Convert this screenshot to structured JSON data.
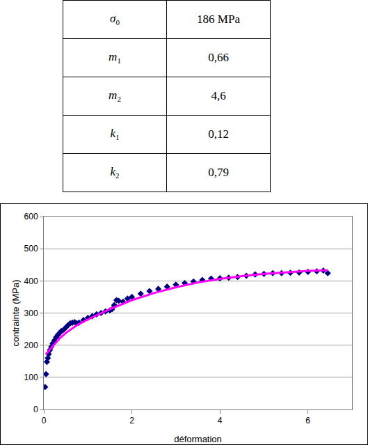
{
  "table": {
    "rows": [
      {
        "symbol": "σ",
        "sub": "0",
        "value": "186 MPa"
      },
      {
        "symbol": "m",
        "sub": "1",
        "value": "0,66"
      },
      {
        "symbol": "m",
        "sub": "2",
        "value": "4,6"
      },
      {
        "symbol": "k",
        "sub": "1",
        "value": "0,12"
      },
      {
        "symbol": "k",
        "sub": "2",
        "value": "0,79"
      }
    ]
  },
  "chart_data": {
    "type": "scatter",
    "xlabel": "déformation",
    "ylabel": "contrainte (MPa)",
    "xlim": [
      0,
      7
    ],
    "xticks": [
      0,
      2,
      4,
      6
    ],
    "ylim": [
      0,
      600
    ],
    "yticks": [
      0,
      100,
      200,
      300,
      400,
      500,
      600
    ],
    "grid": "y",
    "series": [
      {
        "type": "scatter",
        "marker": "diamond",
        "color": "#00007f",
        "x": [
          0.03,
          0.05,
          0.07,
          0.09,
          0.11,
          0.14,
          0.17,
          0.2,
          0.24,
          0.28,
          0.32,
          0.36,
          0.4,
          0.45,
          0.5,
          0.55,
          0.6,
          0.65,
          0.7,
          0.75,
          0.8,
          0.9,
          1.0,
          1.1,
          1.2,
          1.3,
          1.4,
          1.5,
          1.55,
          1.6,
          1.65,
          1.7,
          1.8,
          1.9,
          2.0,
          2.2,
          2.4,
          2.6,
          2.8,
          3.0,
          3.2,
          3.4,
          3.6,
          3.8,
          4.0,
          4.2,
          4.4,
          4.6,
          4.8,
          5.0,
          5.2,
          5.4,
          5.6,
          5.8,
          6.0,
          6.2,
          6.35,
          6.45
        ],
        "values": [
          70,
          110,
          148,
          160,
          172,
          185,
          195,
          205,
          215,
          225,
          232,
          238,
          244,
          248,
          255,
          262,
          268,
          270,
          272,
          268,
          270,
          278,
          285,
          290,
          296,
          300,
          305,
          308,
          312,
          325,
          340,
          338,
          335,
          345,
          350,
          360,
          368,
          375,
          382,
          388,
          393,
          398,
          403,
          407,
          408,
          410,
          412,
          416,
          420,
          422,
          424,
          424,
          425,
          426,
          428,
          430,
          432,
          424
        ]
      },
      {
        "type": "line",
        "color": "#ff00ff",
        "x": [
          0.05,
          0.1,
          0.2,
          0.35,
          0.5,
          0.75,
          1,
          1.5,
          2,
          2.5,
          3,
          3.5,
          4,
          4.5,
          5,
          5.5,
          6,
          6.45
        ],
        "values": [
          172,
          180,
          198,
          220,
          238,
          262,
          280,
          312,
          340,
          362,
          380,
          395,
          406,
          415,
          422,
          427,
          431,
          433
        ]
      }
    ]
  }
}
